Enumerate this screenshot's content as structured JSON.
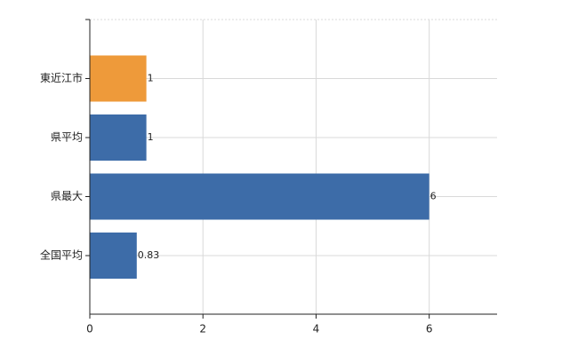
{
  "chart_data": {
    "type": "hbar",
    "categories": [
      "東近江市",
      "県平均",
      "県最大",
      "全国平均"
    ],
    "values": [
      1,
      1,
      6,
      0.83
    ],
    "colors": [
      "#ee9a3a",
      "#3d6ca8",
      "#3d6ca8",
      "#3d6ca8"
    ],
    "xlim": [
      0,
      7.2
    ],
    "xticks": [
      0,
      2,
      4,
      6
    ],
    "grid": true
  }
}
